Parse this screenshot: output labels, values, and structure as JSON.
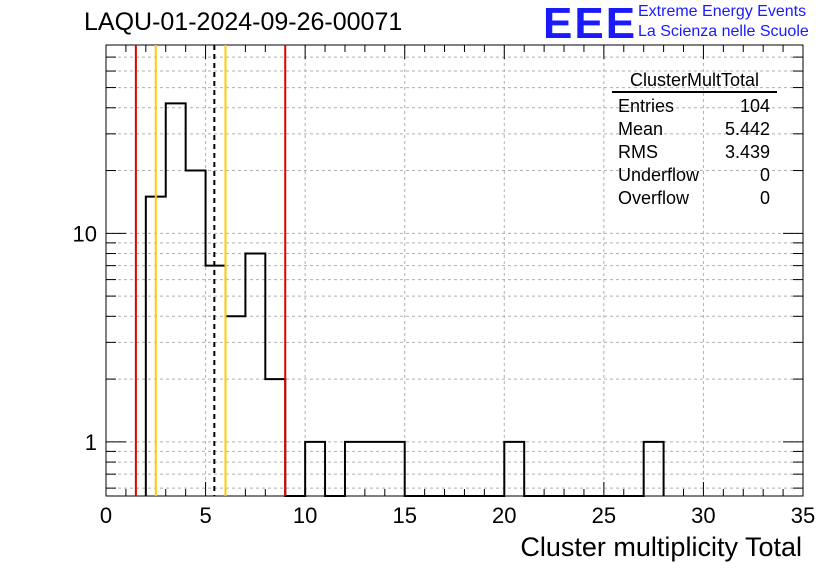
{
  "header": {
    "title": "LAQU-01-2024-09-26-00071",
    "logo_text": "EEE",
    "logo_line1": "Extreme Energy Events",
    "logo_line2": "La Scienza nelle Scuole"
  },
  "stats_box": {
    "name": "ClusterMultTotal",
    "rows": [
      {
        "label": "Entries",
        "value": "104"
      },
      {
        "label": "Mean",
        "value": "5.442"
      },
      {
        "label": "RMS",
        "value": "3.439"
      },
      {
        "label": "Underflow",
        "value": "0"
      },
      {
        "label": "Overflow",
        "value": "0"
      }
    ]
  },
  "chart_data": {
    "type": "histogram",
    "title": "LAQU-01-2024-09-26-00071",
    "xlabel": "Cluster multiplicity Total",
    "ylabel": "",
    "xlim": [
      0,
      35
    ],
    "ylim": [
      0.55,
      80
    ],
    "y_scale": "log",
    "grid": true,
    "bin_width": 1,
    "bin_edges": [
      2,
      3,
      4,
      5,
      6,
      7,
      8,
      9,
      10,
      11,
      12,
      13,
      14,
      15,
      16,
      17,
      18,
      19,
      20,
      21,
      22,
      23,
      24,
      25,
      26,
      27,
      28
    ],
    "counts": [
      15,
      42,
      20,
      7,
      4,
      8,
      2,
      0,
      1,
      0,
      1,
      1,
      1,
      0,
      0,
      0,
      0,
      0,
      1,
      0,
      0,
      0,
      0,
      0,
      0,
      1
    ],
    "x_ticks": [
      0,
      5,
      10,
      15,
      20,
      25,
      30,
      35
    ],
    "y_tick_labels": [
      {
        "value": 1,
        "label": "1"
      },
      {
        "value": 10,
        "label": "10"
      }
    ],
    "vertical_lines": [
      {
        "x": 1.5,
        "color": "#e00000",
        "style": "solid"
      },
      {
        "x": 2.5,
        "color": "#ffcc00",
        "style": "solid"
      },
      {
        "x": 5.44,
        "color": "#000000",
        "style": "dashed"
      },
      {
        "x": 6.0,
        "color": "#ffcc00",
        "style": "solid"
      },
      {
        "x": 9.0,
        "color": "#e00000",
        "style": "solid"
      }
    ]
  }
}
